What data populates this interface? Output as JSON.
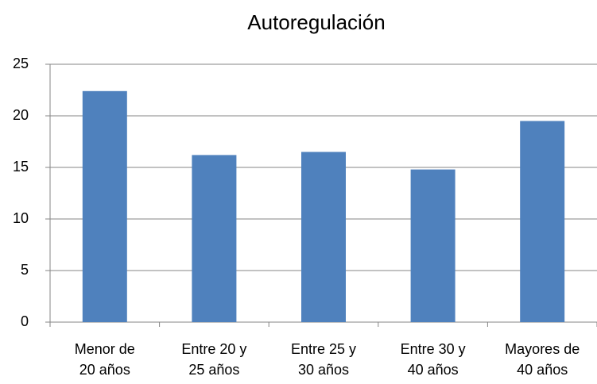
{
  "chart_data": {
    "type": "bar",
    "title": "Autoregulación",
    "categories": [
      "Menor de\n20 años",
      "Entre 20 y\n25 años",
      "Entre 25 y\n30 años",
      "Entre 30 y\n40 años",
      "Mayores de\n40 años"
    ],
    "values": [
      22.4,
      16.2,
      16.5,
      14.8,
      19.5
    ],
    "color": "#4f81bd",
    "ylim": [
      0,
      25
    ],
    "yticks": [
      0,
      5,
      10,
      15,
      20,
      25
    ],
    "grid": true
  }
}
